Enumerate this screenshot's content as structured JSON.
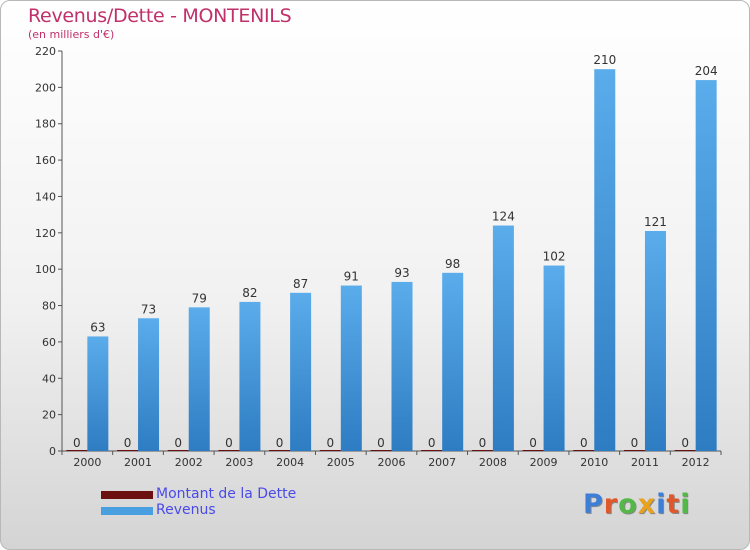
{
  "header": {
    "title": "Revenus/Dette - MONTENILS",
    "subtitle": "(en milliers d'€)"
  },
  "legend": {
    "items": [
      {
        "label": "Montant de la Dette",
        "color": "#6b0f0f"
      },
      {
        "label": "Revenus",
        "color": "#4a9fe0"
      }
    ]
  },
  "brand": {
    "name": "Proxiti",
    "colors": [
      "#3d7fd6",
      "#e0572a",
      "#54b848",
      "#e8a21c",
      "#3d7fd6",
      "#e0572a",
      "#54b848"
    ]
  },
  "chart_data": {
    "type": "bar",
    "title": "Revenus/Dette - MONTENILS",
    "ylabel": "(en milliers d'€)",
    "xlabel": "",
    "categories": [
      "2000",
      "2001",
      "2002",
      "2003",
      "2004",
      "2005",
      "2006",
      "2007",
      "2008",
      "2009",
      "2010",
      "2011",
      "2012"
    ],
    "series": [
      {
        "name": "Montant de la Dette",
        "color": "#6b0f0f",
        "values": [
          0,
          0,
          0,
          0,
          0,
          0,
          0,
          0,
          0,
          0,
          0,
          0,
          0
        ]
      },
      {
        "name": "Revenus",
        "color": "#4a9fe0",
        "values": [
          63,
          73,
          79,
          82,
          87,
          91,
          93,
          98,
          124,
          102,
          210,
          121,
          204
        ]
      }
    ],
    "ylim": [
      0,
      220
    ],
    "yticks": [
      0,
      20,
      40,
      60,
      80,
      100,
      120,
      140,
      160,
      180,
      200,
      220
    ],
    "grid": false,
    "legend_position": "bottom-left"
  }
}
